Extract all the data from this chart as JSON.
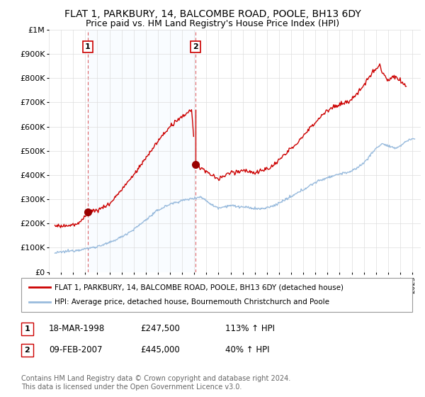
{
  "title": "FLAT 1, PARKBURY, 14, BALCOMBE ROAD, POOLE, BH13 6DY",
  "subtitle": "Price paid vs. HM Land Registry's House Price Index (HPI)",
  "title_fontsize": 10,
  "subtitle_fontsize": 9,
  "ylim": [
    0,
    1000000
  ],
  "yticks": [
    0,
    100000,
    200000,
    300000,
    400000,
    500000,
    600000,
    700000,
    800000,
    900000,
    1000000
  ],
  "ytick_labels": [
    "£0",
    "£100K",
    "£200K",
    "£300K",
    "£400K",
    "£500K",
    "£600K",
    "£700K",
    "£800K",
    "£900K",
    "£1M"
  ],
  "xlim_start": 1995.3,
  "xlim_end": 2025.7,
  "xtick_years": [
    1995,
    1996,
    1997,
    1998,
    1999,
    2000,
    2001,
    2002,
    2003,
    2004,
    2005,
    2006,
    2007,
    2008,
    2009,
    2010,
    2011,
    2012,
    2013,
    2014,
    2015,
    2016,
    2017,
    2018,
    2019,
    2020,
    2021,
    2022,
    2023,
    2024,
    2025
  ],
  "purchase1_x": 1998.21,
  "purchase1_y": 247500,
  "purchase1_label": "1",
  "purchase2_x": 2007.1,
  "purchase2_y": 445000,
  "purchase2_label": "2",
  "line1_color": "#cc0000",
  "line2_color": "#99bbdd",
  "shade_color": "#ddeeff",
  "marker_color": "#990000",
  "dashed_line_color": "#cc0000",
  "legend_label1": "FLAT 1, PARKBURY, 14, BALCOMBE ROAD, POOLE, BH13 6DY (detached house)",
  "legend_label2": "HPI: Average price, detached house, Bournemouth Christchurch and Poole",
  "table_row1": [
    "1",
    "18-MAR-1998",
    "£247,500",
    "113% ↑ HPI"
  ],
  "table_row2": [
    "2",
    "09-FEB-2007",
    "£445,000",
    "40% ↑ HPI"
  ],
  "footer": "Contains HM Land Registry data © Crown copyright and database right 2024.\nThis data is licensed under the Open Government Licence v3.0.",
  "background_color": "#ffffff",
  "grid_color": "#dddddd"
}
